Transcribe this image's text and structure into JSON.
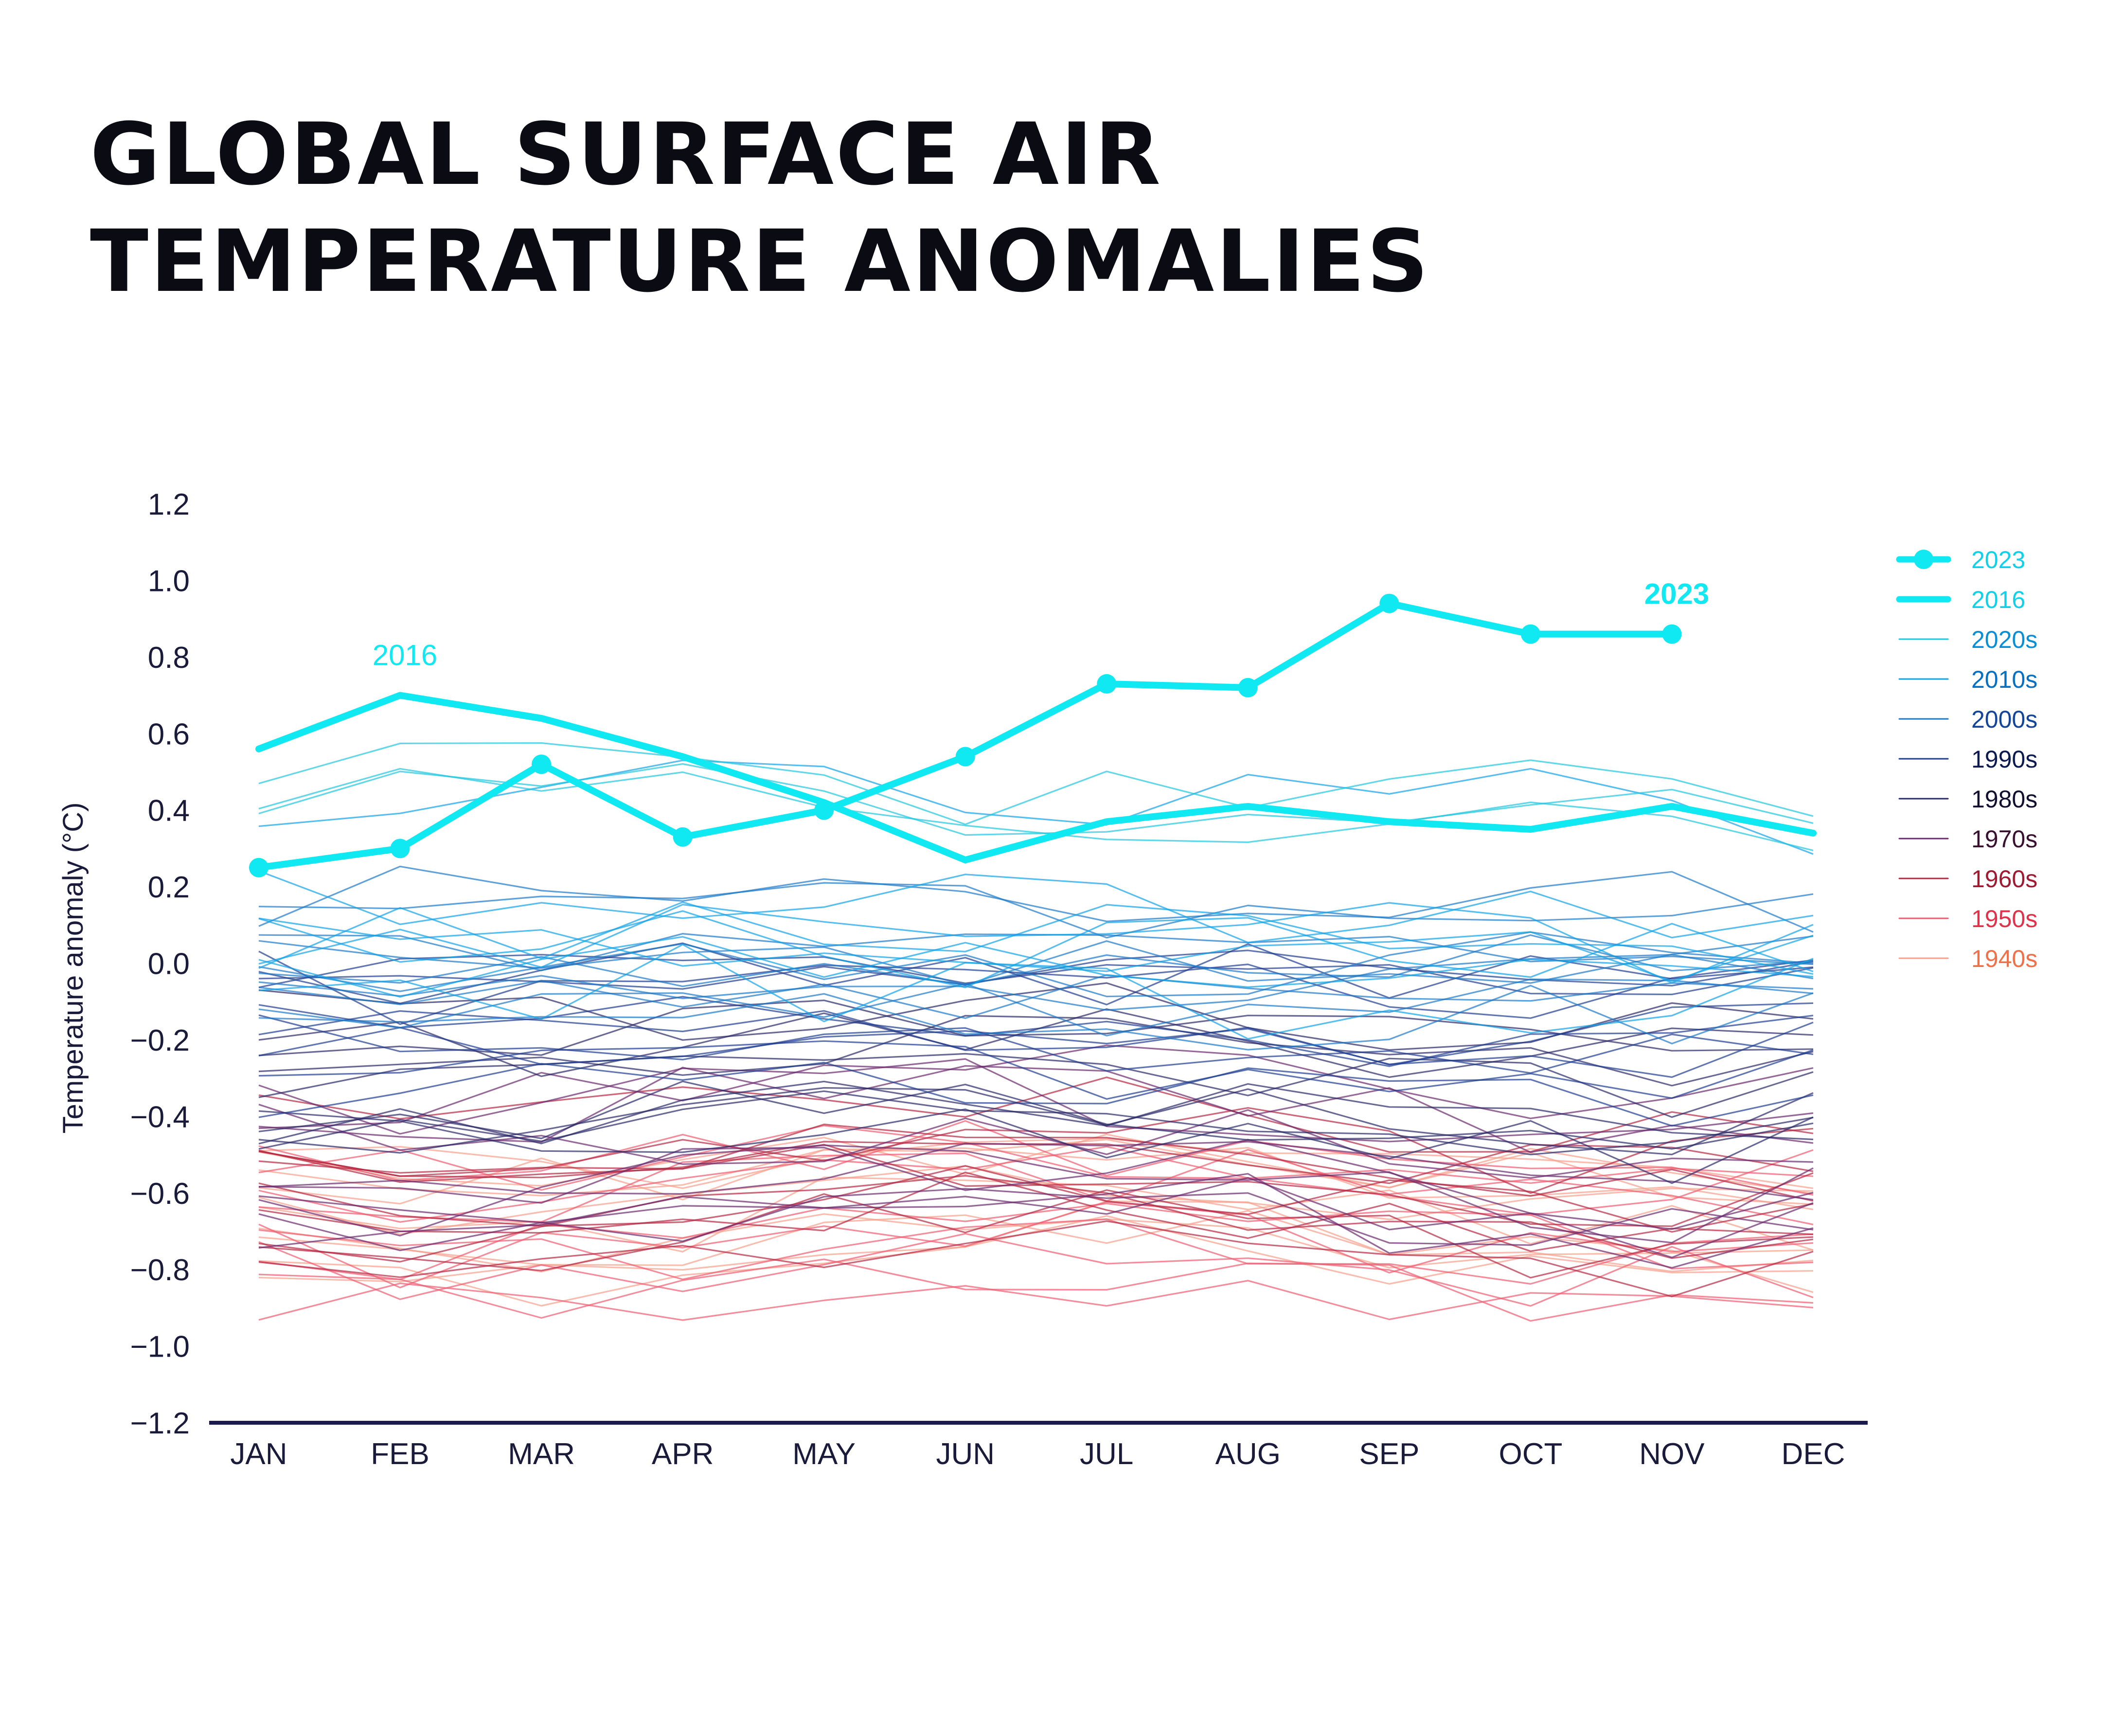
{
  "chart_data": {
    "type": "line",
    "title_lines": [
      "GLOBAL SURFACE AIR",
      "TEMPERATURE ANOMALIES"
    ],
    "xlabel": "",
    "ylabel": "Temperature anomaly (°C)",
    "ylim": [
      -1.2,
      1.2
    ],
    "y_ticks": [
      1.2,
      1.0,
      0.8,
      0.6,
      0.4,
      0.2,
      0.0,
      -0.2,
      -0.4,
      -0.6,
      -0.8,
      -1.0,
      -1.2
    ],
    "y_tick_labels": [
      "1.2",
      "1.0",
      "0.8",
      "0.6",
      "0.4",
      "0.2",
      "0.0",
      "−0.2",
      "−0.4",
      "−0.6",
      "−0.8",
      "−1.0",
      "−1.2"
    ],
    "categories": [
      "JAN",
      "FEB",
      "MAR",
      "APR",
      "MAY",
      "JUN",
      "JUL",
      "AUG",
      "SEP",
      "OCT",
      "NOV",
      "DEC"
    ],
    "highlight_series": [
      {
        "name": "2023",
        "color": "#10e8f2",
        "markers": true,
        "values": [
          0.25,
          0.3,
          0.52,
          0.33,
          0.4,
          0.54,
          0.73,
          0.72,
          0.94,
          0.86,
          0.86
        ]
      },
      {
        "name": "2016",
        "color": "#10e8f2",
        "markers": false,
        "values": [
          0.56,
          0.7,
          0.64,
          0.54,
          0.42,
          0.27,
          0.37,
          0.41,
          0.37,
          0.35,
          0.41,
          0.34
        ]
      }
    ],
    "annotations": [
      {
        "text": "2016",
        "series": "2016",
        "month": "FEB",
        "color": "#10e8f2",
        "bold": false
      },
      {
        "text": "2023",
        "series": "2023",
        "month": "NOV",
        "color": "#10e8f2",
        "bold": true
      }
    ],
    "decades": [
      {
        "name": "2020s",
        "color": "#1ec6de",
        "text_color": "#0a8ed6",
        "center": [
          0.42,
          0.48,
          0.5,
          0.46,
          0.44,
          0.34,
          0.38,
          0.36,
          0.4,
          0.42,
          0.42,
          0.32
        ],
        "spread": 0.12,
        "count": 3
      },
      {
        "name": "2010s",
        "color": "#11a3e6",
        "text_color": "#0670c2",
        "center": [
          0.16,
          0.2,
          0.22,
          0.2,
          0.18,
          0.18,
          0.16,
          0.16,
          0.18,
          0.18,
          0.18,
          0.16
        ],
        "spread": 0.26,
        "count": 8
      },
      {
        "name": "2000s",
        "color": "#1b79c8",
        "text_color": "#13459a",
        "center": [
          0.02,
          0.04,
          0.02,
          0.04,
          0.06,
          0.04,
          0.02,
          0.02,
          0.04,
          0.04,
          0.04,
          0.02
        ],
        "spread": 0.18,
        "count": 10
      },
      {
        "name": "1990s",
        "color": "#203d90",
        "text_color": "#0c1a52",
        "center": [
          -0.18,
          -0.2,
          -0.2,
          -0.18,
          -0.18,
          -0.18,
          -0.2,
          -0.2,
          -0.2,
          -0.22,
          -0.22,
          -0.2
        ],
        "spread": 0.2,
        "count": 10
      },
      {
        "name": "1980s",
        "color": "#2b2a68",
        "text_color": "#120f30",
        "center": [
          -0.32,
          -0.34,
          -0.34,
          -0.3,
          -0.3,
          -0.3,
          -0.3,
          -0.32,
          -0.34,
          -0.34,
          -0.36,
          -0.32
        ],
        "spread": 0.18,
        "count": 10
      },
      {
        "name": "1970s",
        "color": "#6b2a6e",
        "text_color": "#3a1030",
        "center": [
          -0.5,
          -0.52,
          -0.52,
          -0.48,
          -0.46,
          -0.46,
          -0.46,
          -0.48,
          -0.52,
          -0.56,
          -0.56,
          -0.52
        ],
        "spread": 0.22,
        "count": 10
      },
      {
        "name": "1960s",
        "color": "#b52843",
        "text_color": "#a01a32",
        "center": [
          -0.6,
          -0.62,
          -0.62,
          -0.58,
          -0.56,
          -0.54,
          -0.54,
          -0.56,
          -0.6,
          -0.64,
          -0.64,
          -0.62
        ],
        "spread": 0.18,
        "count": 10
      },
      {
        "name": "1950s",
        "color": "#ee5c72",
        "text_color": "#e0324a",
        "center": [
          -0.72,
          -0.74,
          -0.74,
          -0.7,
          -0.66,
          -0.64,
          -0.64,
          -0.66,
          -0.7,
          -0.74,
          -0.74,
          -0.72
        ],
        "spread": 0.2,
        "count": 10
      },
      {
        "name": "1940s",
        "color": "#f7a08c",
        "text_color": "#f0704a",
        "center": [
          -0.66,
          -0.68,
          -0.7,
          -0.68,
          -0.62,
          -0.6,
          -0.58,
          -0.6,
          -0.64,
          -0.66,
          -0.68,
          -0.68
        ],
        "spread": 0.16,
        "count": 10
      }
    ],
    "legend": [
      {
        "label": "2023",
        "color": "#10e8f2",
        "text_color": "#10d0ea",
        "style": "marker-line"
      },
      {
        "label": "2016",
        "color": "#10e8f2",
        "text_color": "#10d0ea",
        "style": "thick-line"
      },
      {
        "label": "2020s",
        "color": "#1ec6de",
        "text_color": "#0a8ed6",
        "style": "thin-line"
      },
      {
        "label": "2010s",
        "color": "#11a3e6",
        "text_color": "#0670c2",
        "style": "thin-line"
      },
      {
        "label": "2000s",
        "color": "#1b79c8",
        "text_color": "#13459a",
        "style": "thin-line"
      },
      {
        "label": "1990s",
        "color": "#203d90",
        "text_color": "#0c1a52",
        "style": "thin-line"
      },
      {
        "label": "1980s",
        "color": "#2b2a68",
        "text_color": "#120f30",
        "style": "thin-line"
      },
      {
        "label": "1970s",
        "color": "#6b2a6e",
        "text_color": "#3a1030",
        "style": "thin-line"
      },
      {
        "label": "1960s",
        "color": "#b52843",
        "text_color": "#a01a32",
        "style": "thin-line"
      },
      {
        "label": "1950s",
        "color": "#ee5c72",
        "text_color": "#e0324a",
        "style": "thin-line"
      },
      {
        "label": "1940s",
        "color": "#f7a08c",
        "text_color": "#f0704a",
        "style": "thin-line"
      }
    ],
    "legend_position": "right",
    "grid": false
  },
  "colors": {
    "axis": "#1b1a4a",
    "text": "#1a1a3a",
    "title": "#0b0b14",
    "highlight": "#10e8f2"
  }
}
